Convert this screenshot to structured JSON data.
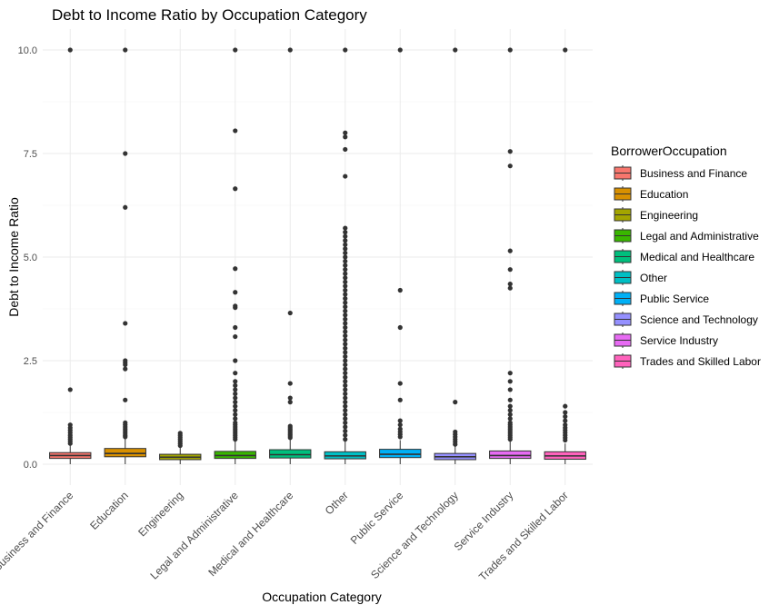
{
  "chart_data": {
    "type": "box",
    "title": "Debt to Income Ratio by Occupation Category",
    "xlabel": "Occupation Category",
    "ylabel": "Debt to Income Ratio",
    "ylim": [
      -0.6,
      10.5
    ],
    "yticks": [
      0.0,
      2.5,
      5.0,
      7.5,
      10.0
    ],
    "ytick_labels": [
      "0.0",
      "2.5",
      "5.0",
      "7.5",
      "10.0"
    ],
    "grid": true,
    "legend": {
      "title": "BorrowerOccupation",
      "position": "right"
    },
    "categories": [
      "Business and Finance",
      "Education",
      "Engineering",
      "Legal and Administrative",
      "Medical and Healthcare",
      "Other",
      "Public Service",
      "Science and Technology",
      "Service Industry",
      "Trades and Skilled Labor"
    ],
    "colors": [
      "#F8766D",
      "#D89000",
      "#A3A500",
      "#39B600",
      "#00BF7D",
      "#00BFC4",
      "#00B0F6",
      "#9590FF",
      "#E76BF3",
      "#FF62BC"
    ],
    "series": [
      {
        "q1": 0.14,
        "median": 0.21,
        "q3": 0.28,
        "whisker_low": 0.0,
        "whisker_high": 0.45,
        "outliers": [
          10.0,
          1.8,
          0.95,
          0.88,
          0.82,
          0.76,
          0.7,
          0.65,
          0.6,
          0.55,
          0.5
        ]
      },
      {
        "q1": 0.18,
        "median": 0.26,
        "q3": 0.38,
        "whisker_low": 0.0,
        "whisker_high": 0.62,
        "outliers": [
          10.0,
          7.5,
          6.2,
          3.4,
          2.5,
          2.45,
          2.4,
          2.3,
          1.55,
          1.0,
          0.95,
          0.9,
          0.85,
          0.8,
          0.75,
          0.7,
          0.66
        ]
      },
      {
        "q1": 0.11,
        "median": 0.17,
        "q3": 0.24,
        "whisker_low": 0.0,
        "whisker_high": 0.4,
        "outliers": [
          0.75,
          0.7,
          0.65,
          0.6,
          0.55,
          0.5,
          0.45
        ]
      },
      {
        "q1": 0.14,
        "median": 0.21,
        "q3": 0.31,
        "whisker_low": 0.0,
        "whisker_high": 0.55,
        "outliers": [
          10.0,
          8.05,
          6.65,
          4.72,
          4.15,
          3.82,
          3.78,
          3.3,
          3.08,
          2.5,
          2.2,
          2.0,
          1.9,
          1.8,
          1.7,
          1.6,
          1.5,
          1.4,
          1.3,
          1.2,
          1.1,
          1.0,
          0.95,
          0.9,
          0.85,
          0.8,
          0.75,
          0.7,
          0.65,
          0.6
        ]
      },
      {
        "q1": 0.15,
        "median": 0.23,
        "q3": 0.35,
        "whisker_low": 0.0,
        "whisker_high": 0.6,
        "outliers": [
          10.0,
          3.65,
          1.95,
          1.6,
          1.5,
          0.92,
          0.88,
          0.84,
          0.8,
          0.76,
          0.72,
          0.68,
          0.64
        ]
      },
      {
        "q1": 0.13,
        "median": 0.2,
        "q3": 0.3,
        "whisker_low": 0.0,
        "whisker_high": 0.55,
        "outliers": [
          10.0,
          8.0,
          7.9,
          7.6,
          6.95,
          5.7,
          5.6,
          5.5,
          5.4,
          5.3,
          5.2,
          5.1,
          5.0,
          4.9,
          4.8,
          4.7,
          4.6,
          4.5,
          4.4,
          4.3,
          4.2,
          4.1,
          4.0,
          3.9,
          3.8,
          3.7,
          3.6,
          3.5,
          3.4,
          3.3,
          3.2,
          3.1,
          3.0,
          2.9,
          2.8,
          2.7,
          2.6,
          2.5,
          2.4,
          2.3,
          2.2,
          2.1,
          2.0,
          1.9,
          1.8,
          1.7,
          1.6,
          1.5,
          1.4,
          1.3,
          1.2,
          1.1,
          1.0,
          0.9,
          0.8,
          0.7,
          0.6
        ]
      },
      {
        "q1": 0.16,
        "median": 0.24,
        "q3": 0.36,
        "whisker_low": 0.0,
        "whisker_high": 0.58,
        "outliers": [
          10.0,
          4.2,
          3.3,
          1.95,
          1.55,
          1.05,
          0.95,
          0.85,
          0.78,
          0.72,
          0.66
        ]
      },
      {
        "q1": 0.11,
        "median": 0.18,
        "q3": 0.26,
        "whisker_low": 0.0,
        "whisker_high": 0.43,
        "outliers": [
          10.0,
          1.5,
          0.78,
          0.72,
          0.66,
          0.6,
          0.54,
          0.48
        ]
      },
      {
        "q1": 0.14,
        "median": 0.21,
        "q3": 0.32,
        "whisker_low": 0.0,
        "whisker_high": 0.55,
        "outliers": [
          10.0,
          7.55,
          7.2,
          5.15,
          4.7,
          4.35,
          4.25,
          2.2,
          2.0,
          1.8,
          1.55,
          1.4,
          1.3,
          1.2,
          1.1,
          1.0,
          0.95,
          0.9,
          0.85,
          0.8,
          0.75,
          0.7,
          0.65,
          0.6
        ]
      },
      {
        "q1": 0.12,
        "median": 0.2,
        "q3": 0.3,
        "whisker_low": 0.0,
        "whisker_high": 0.5,
        "outliers": [
          10.0,
          1.4,
          1.25,
          1.15,
          1.05,
          0.95,
          0.88,
          0.82,
          0.76,
          0.7,
          0.64,
          0.58
        ]
      }
    ]
  }
}
